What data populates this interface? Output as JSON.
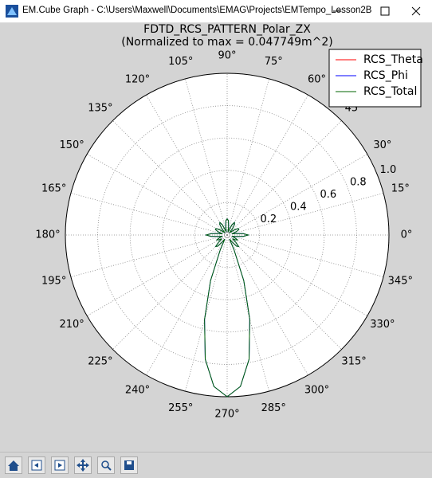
{
  "window": {
    "title": "EM.Cube Graph - C:\\Users\\Maxwell\\Documents\\EMAG\\Projects\\EMTempo_Lesson2B"
  },
  "chart_data": {
    "type": "polar",
    "title": "FDTD_RCS_PATTERN_Polar_ZX",
    "subtitle": "(Normalized to max = 0.047749m^2)",
    "x": [
      0,
      5,
      10,
      15,
      20,
      25,
      30,
      35,
      40,
      45,
      50,
      55,
      60,
      65,
      70,
      75,
      80,
      85,
      90,
      95,
      100,
      105,
      110,
      115,
      120,
      125,
      130,
      135,
      140,
      145,
      150,
      155,
      160,
      165,
      170,
      175,
      180,
      185,
      190,
      195,
      200,
      205,
      210,
      215,
      220,
      225,
      230,
      235,
      240,
      245,
      250,
      255,
      260,
      265,
      270,
      275,
      280,
      285,
      290,
      295,
      300,
      305,
      310,
      315,
      320,
      325,
      330,
      335,
      340,
      345,
      350,
      355
    ],
    "series": [
      {
        "name": "RCS_Theta",
        "color": "#ff0000",
        "values": [
          0,
          0,
          0,
          0,
          0,
          0,
          0,
          0,
          0,
          0,
          0,
          0,
          0,
          0,
          0,
          0,
          0,
          0,
          0,
          0,
          0,
          0,
          0,
          0,
          0,
          0,
          0,
          0,
          0,
          0,
          0,
          0,
          0,
          0,
          0,
          0,
          0,
          0,
          0,
          0,
          0,
          0,
          0,
          0,
          0,
          0,
          0,
          0,
          0,
          0,
          0,
          0,
          0,
          0,
          0,
          0,
          0,
          0,
          0,
          0,
          0,
          0,
          0,
          0,
          0,
          0,
          0,
          0,
          0,
          0,
          0,
          0
        ]
      },
      {
        "name": "RCS_Phi",
        "color": "#0000ff",
        "values": [
          0.13,
          0.1,
          0.05,
          0.03,
          0.06,
          0.08,
          0.08,
          0.06,
          0.03,
          0.02,
          0.05,
          0.08,
          0.09,
          0.07,
          0.03,
          0.02,
          0.05,
          0.09,
          0.1,
          0.09,
          0.05,
          0.02,
          0.03,
          0.07,
          0.09,
          0.08,
          0.05,
          0.02,
          0.03,
          0.06,
          0.08,
          0.08,
          0.06,
          0.03,
          0.05,
          0.1,
          0.13,
          0.1,
          0.05,
          0.03,
          0.05,
          0.07,
          0.06,
          0.04,
          0.07,
          0.1,
          0.09,
          0.05,
          0.03,
          0.1,
          0.3,
          0.54,
          0.78,
          0.94,
          1.0,
          0.94,
          0.78,
          0.54,
          0.3,
          0.1,
          0.03,
          0.05,
          0.09,
          0.1,
          0.07,
          0.04,
          0.06,
          0.07,
          0.05,
          0.03,
          0.05,
          0.1
        ]
      },
      {
        "name": "RCS_Total",
        "color": "#006400",
        "values": [
          0.13,
          0.1,
          0.05,
          0.03,
          0.06,
          0.08,
          0.08,
          0.06,
          0.03,
          0.02,
          0.05,
          0.08,
          0.09,
          0.07,
          0.03,
          0.02,
          0.05,
          0.09,
          0.1,
          0.09,
          0.05,
          0.02,
          0.03,
          0.07,
          0.09,
          0.08,
          0.05,
          0.02,
          0.03,
          0.06,
          0.08,
          0.08,
          0.06,
          0.03,
          0.05,
          0.1,
          0.13,
          0.1,
          0.05,
          0.03,
          0.05,
          0.07,
          0.06,
          0.04,
          0.07,
          0.1,
          0.09,
          0.05,
          0.03,
          0.1,
          0.3,
          0.54,
          0.78,
          0.94,
          1.0,
          0.94,
          0.78,
          0.54,
          0.3,
          0.1,
          0.03,
          0.05,
          0.09,
          0.1,
          0.07,
          0.04,
          0.06,
          0.07,
          0.05,
          0.03,
          0.05,
          0.1
        ]
      }
    ],
    "ylim": [
      0,
      1.0
    ],
    "yticks": [
      0.2,
      0.4,
      0.6,
      0.8,
      {
        "value": 1.0,
        "label": "1.0"
      }
    ],
    "xticks": [
      {
        "value": 0,
        "label": "0°"
      },
      {
        "value": 15,
        "label": "15°"
      },
      {
        "value": 30,
        "label": "30°"
      },
      {
        "value": 45,
        "label": "45°"
      },
      {
        "value": 60,
        "label": "60°"
      },
      {
        "value": 75,
        "label": "75°"
      },
      {
        "value": 90,
        "label": "90°"
      },
      {
        "value": 105,
        "label": "105°"
      },
      {
        "value": 120,
        "label": "120°"
      },
      {
        "value": 135,
        "label": "135°"
      },
      {
        "value": 150,
        "label": "150°"
      },
      {
        "value": 165,
        "label": "165°"
      },
      {
        "value": 180,
        "label": "180°"
      },
      {
        "value": 195,
        "label": "195°"
      },
      {
        "value": 210,
        "label": "210°"
      },
      {
        "value": 225,
        "label": "225°"
      },
      {
        "value": 240,
        "label": "240°"
      },
      {
        "value": 255,
        "label": "255°"
      },
      {
        "value": 270,
        "label": "270°"
      },
      {
        "value": 285,
        "label": "285°"
      },
      {
        "value": 300,
        "label": "300°"
      },
      {
        "value": 315,
        "label": "315°"
      },
      {
        "value": 330,
        "label": "330°"
      },
      {
        "value": 345,
        "label": "345°"
      }
    ],
    "grid": true,
    "legend": "upper right"
  }
}
